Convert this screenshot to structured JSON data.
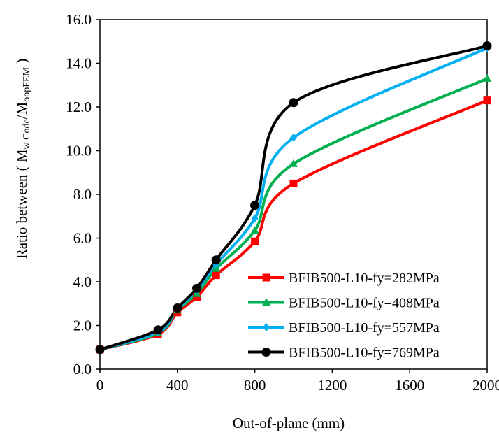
{
  "chart_data": {
    "type": "line",
    "title": "",
    "xlabel": "Out-of-plane (mm)",
    "ylabel": {
      "prefix": "Ratio between ( M",
      "sub1": "w Code",
      "mid": "/M",
      "sub2": "oopFEM",
      "suffix": " )"
    },
    "xlim": [
      0,
      2000
    ],
    "ylim": [
      0,
      16
    ],
    "x_ticks": [
      0,
      400,
      800,
      1200,
      1600,
      2000
    ],
    "x_tick_labels": [
      "0",
      "400",
      "800",
      "1200",
      "1600",
      "2000"
    ],
    "y_ticks": [
      0,
      2,
      4,
      6,
      8,
      10,
      12,
      14,
      16
    ],
    "y_tick_labels": [
      "0.0",
      "2.0",
      "4.0",
      "6.0",
      "8.0",
      "10.0",
      "12.0",
      "14.0",
      "16.0"
    ],
    "x": [
      0,
      300,
      400,
      500,
      600,
      800,
      1000,
      2000
    ],
    "legend_position": "center-right",
    "series": [
      {
        "name": "BFIB500-L10-fy=282MPa",
        "color": "#ff0000",
        "marker": "square",
        "values": [
          0.9,
          1.6,
          2.6,
          3.3,
          4.3,
          5.85,
          8.5,
          12.3
        ]
      },
      {
        "name": "BFIB500-L10-fy=408MPa",
        "color": "#00b050",
        "marker": "triangle",
        "values": [
          0.9,
          1.65,
          2.7,
          3.45,
          4.6,
          6.35,
          9.4,
          13.3
        ]
      },
      {
        "name": "BFIB500-L10-fy=557MPa",
        "color": "#00b0f0",
        "marker": "diamond",
        "values": [
          0.9,
          1.7,
          2.75,
          3.6,
          4.8,
          6.9,
          10.6,
          14.7
        ]
      },
      {
        "name": "BFIB500-L10-fy=769MPa",
        "color": "#000000",
        "marker": "circle",
        "values": [
          0.9,
          1.8,
          2.8,
          3.7,
          5.0,
          7.5,
          12.2,
          14.8
        ]
      }
    ]
  }
}
